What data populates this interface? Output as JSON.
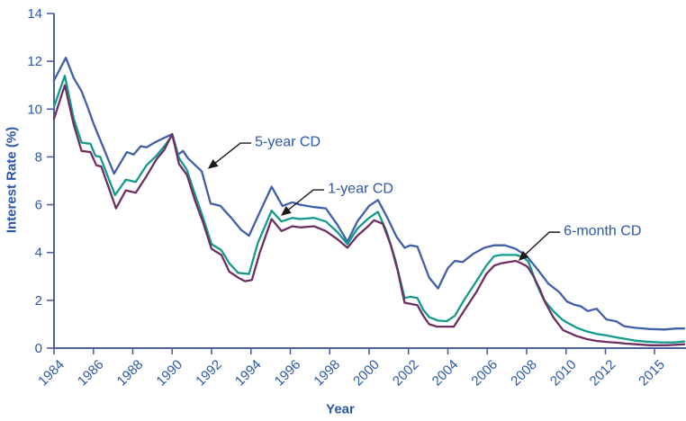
{
  "chart_data": {
    "type": "line",
    "title": "",
    "xlabel": "Year",
    "ylabel": "Interest Rate (%)",
    "xlim": [
      1984,
      2016
    ],
    "ylim": [
      0,
      14
    ],
    "grid": false,
    "legend_position": "inline-annotations",
    "x_tick_labels": [
      "1984",
      "1986",
      "1988",
      "1990",
      "1992",
      "1994",
      "1996",
      "1998",
      "2000",
      "2002",
      "2004",
      "2006",
      "2008",
      "2010",
      "2012",
      "2015"
    ],
    "y_tick_values": [
      "0",
      "2",
      "4",
      "6",
      "8",
      "10",
      "12",
      "14"
    ],
    "colors": {
      "five_year": "#3f5fa8",
      "one_year": "#149a8c",
      "six_month": "#6d2e62",
      "axis": "#4f5f9e",
      "tick_text": "#2b57a8",
      "arrow": "#1a1a1a",
      "background": "#ffffff"
    },
    "series": [
      {
        "name": "5-year CD",
        "color": "#3f5fa8",
        "points": [
          [
            1984.0,
            11.2
          ],
          [
            1984.6,
            12.15
          ],
          [
            1985.0,
            11.3
          ],
          [
            1985.4,
            10.75
          ],
          [
            1985.7,
            10.1
          ],
          [
            1986.0,
            9.4
          ],
          [
            1986.5,
            8.4
          ],
          [
            1987.05,
            7.3
          ],
          [
            1987.7,
            8.2
          ],
          [
            1988.05,
            8.1
          ],
          [
            1988.4,
            8.45
          ],
          [
            1988.7,
            8.4
          ],
          [
            1989.1,
            8.6
          ],
          [
            1989.6,
            8.8
          ],
          [
            1990.0,
            8.95
          ],
          [
            1990.3,
            8.1
          ],
          [
            1990.55,
            8.25
          ],
          [
            1990.8,
            7.95
          ],
          [
            1991.5,
            7.4
          ],
          [
            1991.95,
            6.05
          ],
          [
            1992.45,
            5.95
          ],
          [
            1993.0,
            5.45
          ],
          [
            1993.5,
            4.95
          ],
          [
            1993.9,
            4.7
          ],
          [
            1994.4,
            5.6
          ],
          [
            1995.05,
            6.75
          ],
          [
            1995.6,
            5.95
          ],
          [
            1996.1,
            6.1
          ],
          [
            1996.5,
            6.0
          ],
          [
            1997.2,
            5.9
          ],
          [
            1997.8,
            5.85
          ],
          [
            1998.4,
            5.15
          ],
          [
            1998.9,
            4.45
          ],
          [
            1999.4,
            5.3
          ],
          [
            2000.0,
            5.95
          ],
          [
            2000.45,
            6.2
          ],
          [
            2000.9,
            5.5
          ],
          [
            2001.4,
            4.65
          ],
          [
            2001.8,
            4.2
          ],
          [
            2002.1,
            4.3
          ],
          [
            2002.45,
            4.25
          ],
          [
            2002.75,
            3.6
          ],
          [
            2003.05,
            2.95
          ],
          [
            2003.5,
            2.5
          ],
          [
            2004.0,
            3.35
          ],
          [
            2004.35,
            3.65
          ],
          [
            2004.75,
            3.6
          ],
          [
            2005.3,
            3.95
          ],
          [
            2005.85,
            4.2
          ],
          [
            2006.35,
            4.3
          ],
          [
            2006.9,
            4.3
          ],
          [
            2007.45,
            4.15
          ],
          [
            2008.0,
            3.85
          ],
          [
            2008.55,
            3.3
          ],
          [
            2009.1,
            2.7
          ],
          [
            2009.65,
            2.35
          ],
          [
            2010.05,
            1.95
          ],
          [
            2010.4,
            1.82
          ],
          [
            2010.75,
            1.75
          ],
          [
            2011.1,
            1.55
          ],
          [
            2011.55,
            1.65
          ],
          [
            2012.05,
            1.2
          ],
          [
            2012.55,
            1.12
          ],
          [
            2012.95,
            0.92
          ],
          [
            2013.5,
            0.85
          ],
          [
            2014.2,
            0.8
          ],
          [
            2015.0,
            0.78
          ],
          [
            2015.6,
            0.82
          ],
          [
            2016.0,
            0.82
          ]
        ]
      },
      {
        "name": "1-year CD",
        "color": "#149a8c",
        "points": [
          [
            1984.0,
            10.1
          ],
          [
            1984.55,
            11.4
          ],
          [
            1985.0,
            9.6
          ],
          [
            1985.4,
            8.6
          ],
          [
            1985.85,
            8.55
          ],
          [
            1986.1,
            8.05
          ],
          [
            1986.35,
            8.0
          ],
          [
            1987.1,
            6.4
          ],
          [
            1987.65,
            7.05
          ],
          [
            1988.15,
            6.95
          ],
          [
            1988.7,
            7.65
          ],
          [
            1989.2,
            8.05
          ],
          [
            1989.65,
            8.5
          ],
          [
            1990.0,
            8.9
          ],
          [
            1990.35,
            7.95
          ],
          [
            1990.75,
            7.45
          ],
          [
            1991.15,
            6.45
          ],
          [
            1991.55,
            5.5
          ],
          [
            1992.0,
            4.35
          ],
          [
            1992.5,
            4.1
          ],
          [
            1992.9,
            3.55
          ],
          [
            1993.35,
            3.15
          ],
          [
            1993.9,
            3.1
          ],
          [
            1994.35,
            4.4
          ],
          [
            1995.05,
            5.75
          ],
          [
            1995.55,
            5.3
          ],
          [
            1996.1,
            5.45
          ],
          [
            1996.5,
            5.4
          ],
          [
            1997.2,
            5.45
          ],
          [
            1997.8,
            5.3
          ],
          [
            1998.4,
            4.85
          ],
          [
            1998.9,
            4.35
          ],
          [
            1999.4,
            5.0
          ],
          [
            2000.0,
            5.45
          ],
          [
            2000.45,
            5.7
          ],
          [
            2000.9,
            4.85
          ],
          [
            2001.35,
            3.65
          ],
          [
            2001.8,
            2.1
          ],
          [
            2002.1,
            2.15
          ],
          [
            2002.45,
            2.1
          ],
          [
            2002.75,
            1.6
          ],
          [
            2003.05,
            1.3
          ],
          [
            2003.5,
            1.15
          ],
          [
            2003.95,
            1.13
          ],
          [
            2004.35,
            1.35
          ],
          [
            2004.85,
            2.05
          ],
          [
            2005.45,
            2.8
          ],
          [
            2005.95,
            3.45
          ],
          [
            2006.35,
            3.85
          ],
          [
            2006.7,
            3.9
          ],
          [
            2007.45,
            3.9
          ],
          [
            2007.85,
            3.8
          ],
          [
            2008.1,
            3.6
          ],
          [
            2008.5,
            2.7
          ],
          [
            2008.85,
            2.05
          ],
          [
            2009.35,
            1.55
          ],
          [
            2009.8,
            1.2
          ],
          [
            2010.1,
            1.05
          ],
          [
            2010.55,
            0.85
          ],
          [
            2011.05,
            0.7
          ],
          [
            2011.55,
            0.6
          ],
          [
            2012.05,
            0.53
          ],
          [
            2012.55,
            0.45
          ],
          [
            2013.05,
            0.38
          ],
          [
            2013.55,
            0.31
          ],
          [
            2014.1,
            0.27
          ],
          [
            2014.8,
            0.24
          ],
          [
            2015.5,
            0.24
          ],
          [
            2016.0,
            0.28
          ]
        ]
      },
      {
        "name": "6-month CD",
        "color": "#6d2e62",
        "points": [
          [
            1984.0,
            9.6
          ],
          [
            1984.55,
            11.0
          ],
          [
            1985.0,
            9.35
          ],
          [
            1985.4,
            8.25
          ],
          [
            1985.85,
            8.2
          ],
          [
            1986.15,
            7.65
          ],
          [
            1986.4,
            7.6
          ],
          [
            1987.15,
            5.85
          ],
          [
            1987.65,
            6.6
          ],
          [
            1988.15,
            6.5
          ],
          [
            1988.7,
            7.2
          ],
          [
            1989.2,
            7.9
          ],
          [
            1989.6,
            8.3
          ],
          [
            1990.0,
            8.95
          ],
          [
            1990.35,
            7.7
          ],
          [
            1990.75,
            7.25
          ],
          [
            1991.15,
            6.2
          ],
          [
            1991.55,
            5.3
          ],
          [
            1992.0,
            4.15
          ],
          [
            1992.5,
            3.9
          ],
          [
            1992.9,
            3.2
          ],
          [
            1993.35,
            2.95
          ],
          [
            1993.7,
            2.8
          ],
          [
            1994.05,
            2.85
          ],
          [
            1994.45,
            4.0
          ],
          [
            1995.05,
            5.4
          ],
          [
            1995.55,
            4.9
          ],
          [
            1996.1,
            5.1
          ],
          [
            1996.5,
            5.05
          ],
          [
            1997.2,
            5.1
          ],
          [
            1997.8,
            4.9
          ],
          [
            1998.4,
            4.55
          ],
          [
            1998.9,
            4.2
          ],
          [
            1999.4,
            4.7
          ],
          [
            1999.95,
            5.1
          ],
          [
            2000.25,
            5.35
          ],
          [
            2000.7,
            5.2
          ],
          [
            2001.1,
            4.3
          ],
          [
            2001.45,
            3.25
          ],
          [
            2001.8,
            1.9
          ],
          [
            2002.1,
            1.85
          ],
          [
            2002.45,
            1.8
          ],
          [
            2002.75,
            1.35
          ],
          [
            2003.05,
            1.0
          ],
          [
            2003.45,
            0.9
          ],
          [
            2004.3,
            0.9
          ],
          [
            2004.85,
            1.6
          ],
          [
            2005.45,
            2.35
          ],
          [
            2005.95,
            3.1
          ],
          [
            2006.35,
            3.45
          ],
          [
            2006.7,
            3.55
          ],
          [
            2007.45,
            3.65
          ],
          [
            2007.85,
            3.5
          ],
          [
            2008.05,
            3.4
          ],
          [
            2008.35,
            3.0
          ],
          [
            2008.65,
            2.5
          ],
          [
            2008.95,
            1.9
          ],
          [
            2009.35,
            1.3
          ],
          [
            2009.85,
            0.75
          ],
          [
            2010.55,
            0.5
          ],
          [
            2011.05,
            0.38
          ],
          [
            2011.55,
            0.3
          ],
          [
            2012.05,
            0.26
          ],
          [
            2012.55,
            0.23
          ],
          [
            2013.05,
            0.19
          ],
          [
            2013.55,
            0.16
          ],
          [
            2014.3,
            0.12
          ],
          [
            2015.1,
            0.12
          ],
          [
            2015.8,
            0.15
          ],
          [
            2016.0,
            0.16
          ]
        ]
      }
    ],
    "annotations": [
      {
        "text": "5-year CD",
        "series": "5-year CD",
        "text_year": 1994.2,
        "text_value": 8.58,
        "tip_year": 1991.86,
        "tip_value": 7.53
      },
      {
        "text": "1-year CD",
        "series": "1-year CD",
        "text_year": 1997.9,
        "text_value": 6.62,
        "tip_year": 1995.57,
        "tip_value": 5.57
      },
      {
        "text": "6-month CD",
        "series": "6-month CD",
        "text_year": 2009.88,
        "text_value": 4.85,
        "tip_year": 2007.63,
        "tip_value": 3.69
      }
    ]
  }
}
